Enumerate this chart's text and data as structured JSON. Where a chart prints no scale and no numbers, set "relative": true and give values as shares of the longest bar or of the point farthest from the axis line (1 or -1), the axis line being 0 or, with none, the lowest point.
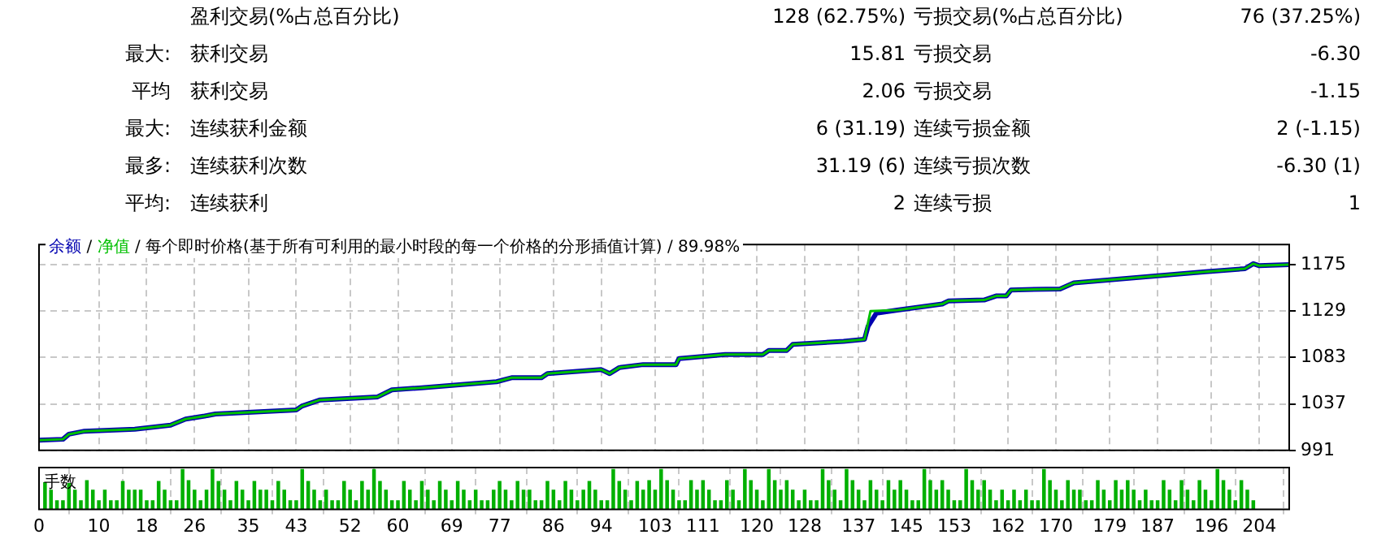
{
  "chart_data": [
    {
      "type": "other",
      "annotations": [
        "盈利交易(%占总百分比)",
        "128 (62.75%)",
        "亏损交易(%占总百分比)",
        "76 (37.25%)",
        "最大:",
        "获利交易",
        "15.81",
        "亏损交易",
        "-6.30",
        "平均",
        "获利交易",
        "2.06",
        "亏损交易",
        "-1.15",
        "最大:",
        "连续获利金额",
        "6 (31.19)",
        "连续亏损金额",
        "2 (-1.15)",
        "最多:",
        "连续获利次数",
        "31.19 (6)",
        "连续亏损次数",
        "-6.30 (1)",
        "平均:",
        "连续获利",
        "2",
        "连续亏损",
        "1"
      ]
    },
    {
      "type": "line",
      "legend": "top left",
      "grid": true,
      "tick_labels": "y",
      "annotations": [
        "/",
        "/ 每个即时价格(基于所有可利用的最小时段的每一个价格的分形插值计算) / 89.98%"
      ],
      "xlim": [
        0,
        209
      ],
      "xticks": [
        0,
        10,
        18,
        26,
        35,
        43,
        52,
        60,
        69,
        77,
        86,
        94,
        103,
        111,
        120,
        128,
        137,
        145,
        153,
        162,
        170,
        179,
        187,
        196,
        204
      ],
      "ylim": [
        991,
        1195
      ],
      "yticks": [
        991,
        1037,
        1083,
        1129,
        1175
      ],
      "series": [
        {
          "name": "净值",
          "color": "#00c000",
          "x": [
            0,
            4,
            5,
            7.6,
            16,
            22,
            24.5,
            27.7,
            29.5,
            43,
            44,
            47,
            56.6,
            59,
            64,
            76.5,
            79,
            84,
            85,
            94,
            95.4,
            97,
            101,
            106.5,
            107,
            114.7,
            121,
            122,
            125,
            126,
            134.5,
            138,
            139,
            143.5,
            151,
            152,
            158,
            160,
            161.7,
            162.5,
            170.7,
            173,
            179,
            187,
            195,
            201.6,
            203,
            204,
            209
          ],
          "values": [
            1001,
            1002,
            1007,
            1010,
            1012,
            1016,
            1022,
            1025,
            1027,
            1031,
            1035,
            1041,
            1044,
            1051,
            1053,
            1059,
            1063,
            1063,
            1067,
            1071,
            1067,
            1073,
            1076,
            1076,
            1082,
            1086,
            1086,
            1090,
            1090,
            1096,
            1099,
            1101,
            1129,
            1130,
            1136,
            1139,
            1140,
            1144,
            1144,
            1150,
            1151,
            1157,
            1160,
            1164,
            1168,
            1171,
            1176,
            1174,
            1175
          ]
        },
        {
          "name": "余额",
          "color": "#0000b0",
          "x": [
            0,
            4,
            5,
            7.6,
            16,
            22,
            24.5,
            27.7,
            29.5,
            43,
            44,
            47,
            56.6,
            59,
            64,
            76.5,
            79,
            84,
            85,
            94,
            95.4,
            97,
            101,
            106.5,
            107,
            114.7,
            121,
            122,
            125,
            126,
            134.5,
            138,
            138.6,
            140,
            143.5,
            151,
            152,
            158,
            160,
            161.7,
            162.5,
            170.7,
            173,
            179,
            187,
            195,
            201.6,
            203,
            204,
            209
          ],
          "values": [
            1001,
            1002,
            1007,
            1010,
            1012,
            1016,
            1022,
            1025,
            1027,
            1031,
            1035,
            1041,
            1044,
            1051,
            1053,
            1059,
            1063,
            1063,
            1067,
            1071,
            1067,
            1073,
            1076,
            1076,
            1082,
            1086,
            1086,
            1090,
            1090,
            1096,
            1099,
            1101,
            1114,
            1127,
            1130,
            1136,
            1139,
            1140,
            1144,
            1144,
            1150,
            1151,
            1157,
            1160,
            1164,
            1168,
            1171,
            1176,
            1174,
            1175
          ]
        }
      ]
    },
    {
      "type": "bar",
      "relative": true,
      "grid": "x",
      "ylabel": "手数",
      "color": "#00b000",
      "xlim": [
        0,
        209
      ],
      "xticks": [
        0,
        10,
        18,
        26,
        35,
        43,
        52,
        60,
        69,
        77,
        86,
        94,
        103,
        111,
        120,
        128,
        137,
        145,
        153,
        162,
        170,
        179,
        187,
        196,
        204
      ],
      "x": [
        1,
        2,
        3,
        4,
        5,
        6,
        7,
        8,
        9,
        10,
        11,
        12,
        13,
        14,
        15,
        16,
        17,
        18,
        19,
        20,
        21,
        22,
        23,
        24,
        25,
        26,
        27,
        28,
        29,
        30,
        31,
        32,
        33,
        34,
        35,
        36,
        37,
        38,
        39,
        40,
        41,
        42,
        43,
        44,
        45,
        46,
        47,
        48,
        49,
        50,
        51,
        52,
        53,
        54,
        55,
        56,
        57,
        58,
        59,
        60,
        61,
        62,
        63,
        64,
        65,
        66,
        67,
        68,
        69,
        70,
        71,
        72,
        73,
        74,
        75,
        76,
        77,
        78,
        79,
        80,
        81,
        82,
        83,
        84,
        85,
        86,
        87,
        88,
        89,
        90,
        91,
        92,
        93,
        94,
        95,
        96,
        97,
        98,
        99,
        100,
        101,
        102,
        103,
        104,
        105,
        106,
        107,
        108,
        109,
        110,
        111,
        112,
        113,
        114,
        115,
        116,
        117,
        118,
        119,
        120,
        121,
        122,
        123,
        124,
        125,
        126,
        127,
        128,
        129,
        130,
        131,
        132,
        133,
        134,
        135,
        136,
        137,
        138,
        139,
        140,
        141,
        142,
        143,
        144,
        145,
        146,
        147,
        148,
        149,
        150,
        151,
        152,
        153,
        154,
        155,
        156,
        157,
        158,
        159,
        160,
        161,
        162,
        163,
        164,
        165,
        166,
        167,
        168,
        169,
        170,
        171,
        172,
        173,
        174,
        175,
        176,
        177,
        178,
        179,
        180,
        181,
        182,
        183,
        184,
        185,
        186,
        187,
        188,
        189,
        190,
        191,
        192,
        193,
        194,
        195,
        196,
        197,
        198,
        199,
        200,
        201,
        202,
        203
      ],
      "values": [
        0.67,
        0.48,
        0.22,
        0.22,
        0.65,
        0.48,
        0.22,
        0.72,
        0.48,
        0.22,
        0.48,
        0.22,
        0.22,
        0.7,
        0.48,
        0.48,
        0.48,
        0.22,
        0.22,
        0.7,
        0.48,
        0.22,
        0.22,
        1,
        0.72,
        0.48,
        0.22,
        0.48,
        1,
        0.7,
        0.48,
        0.22,
        0.7,
        0.48,
        0.22,
        0.7,
        0.48,
        0.48,
        0.22,
        0.7,
        0.48,
        0.22,
        0.22,
        1,
        0.7,
        0.48,
        0.22,
        0.48,
        0.22,
        0.22,
        0.7,
        0.48,
        0.22,
        0.7,
        0.48,
        1,
        0.7,
        0.48,
        0.22,
        0.22,
        0.7,
        0.48,
        0.22,
        0.7,
        0.48,
        0.22,
        0.7,
        0.48,
        0.22,
        0.7,
        0.48,
        0.22,
        0.48,
        0.22,
        0.22,
        0.48,
        0.7,
        0.48,
        0.22,
        0.7,
        0.48,
        0.48,
        0.22,
        0.22,
        0.7,
        0.48,
        0.22,
        0.7,
        0.48,
        0.22,
        0.48,
        0.7,
        0.48,
        0.22,
        0.22,
        1,
        0.7,
        0.48,
        0.22,
        0.7,
        0.48,
        0.72,
        0.48,
        1,
        0.72,
        0.48,
        0.22,
        0.22,
        0.72,
        0.48,
        0.72,
        0.48,
        0.22,
        0.22,
        0.72,
        0.48,
        0.22,
        1,
        0.72,
        0.48,
        0.22,
        1,
        0.72,
        0.48,
        0.72,
        0.48,
        0.22,
        0.48,
        0.22,
        0.22,
        1,
        0.72,
        0.48,
        0.22,
        1,
        0.72,
        0.48,
        0.22,
        0.72,
        0.48,
        0.22,
        0.72,
        0.48,
        0.72,
        0.48,
        0.22,
        0.22,
        1,
        0.72,
        0.48,
        0.72,
        0.48,
        0.22,
        0.22,
        1,
        0.72,
        0.48,
        0.72,
        0.48,
        0.22,
        0.48,
        0.22,
        0.48,
        0.22,
        0.48,
        0.22,
        0.22,
        1,
        0.72,
        0.48,
        0.22,
        0.72,
        0.48,
        0.48,
        0.22,
        0.22,
        0.72,
        0.48,
        0.22,
        0.72,
        0.48,
        0.72,
        0.48,
        0.22,
        0.48,
        0.22,
        0.22,
        0.72,
        0.48,
        0.22,
        0.72,
        0.48,
        0.22,
        0.72,
        0.48,
        0.22,
        1,
        0.72,
        0.48,
        0.22,
        0.72,
        0.48,
        0.22
      ]
    }
  ]
}
